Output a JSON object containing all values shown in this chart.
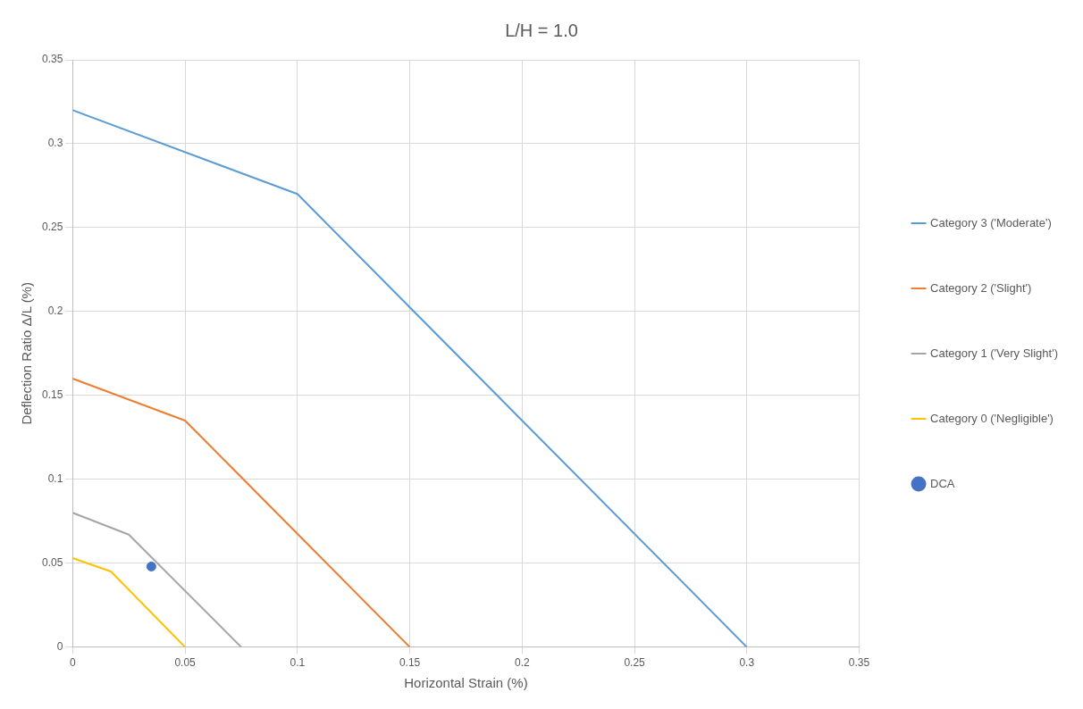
{
  "chart_data": {
    "type": "line",
    "title": "L/H = 1.0",
    "xlabel": "Horizontal Strain (%)",
    "ylabel": "Deflection Ratio Δ/L (%)",
    "xlim": [
      0,
      0.35
    ],
    "xticks": [
      0,
      0.05,
      0.1,
      0.15,
      0.2,
      0.25,
      0.3,
      0.35
    ],
    "ylim": [
      0,
      0.35
    ],
    "yticks": [
      0,
      0.05,
      0.1,
      0.15,
      0.2,
      0.25,
      0.3,
      0.35
    ],
    "grid": true,
    "legend": "right",
    "line_style": "solid",
    "series": [
      {
        "name": "Category 3 ('Moderate')",
        "color": "#5b9bd5",
        "x": [
          0,
          0.1,
          0.3
        ],
        "values": [
          0.32,
          0.27,
          0
        ]
      },
      {
        "name": "Category 2 ('Slight')",
        "color": "#ed7d31",
        "x": [
          0,
          0.05,
          0.15
        ],
        "values": [
          0.16,
          0.135,
          0
        ]
      },
      {
        "name": "Category 1 ('Very Slight')",
        "color": "#a5a5a5",
        "x": [
          0,
          0.025,
          0.075
        ],
        "values": [
          0.08,
          0.067,
          0
        ]
      },
      {
        "name": "Category 0 ('Negligible')",
        "color": "#ffc000",
        "x": [
          0,
          0.017,
          0.05
        ],
        "values": [
          0.053,
          0.045,
          0
        ]
      },
      {
        "name": "DCA",
        "type": "scatter",
        "marker": "circle",
        "color": "#4472c4",
        "x": [
          0.035
        ],
        "values": [
          0.048
        ]
      }
    ]
  }
}
